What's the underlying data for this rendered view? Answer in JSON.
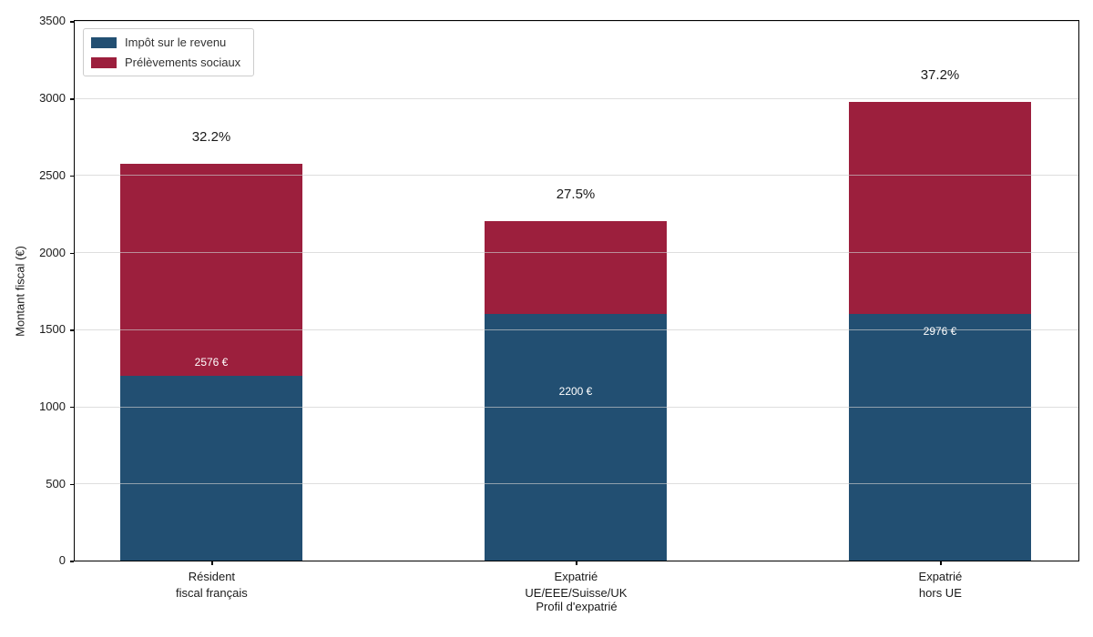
{
  "chart_data": {
    "type": "bar",
    "stacked": true,
    "xlabel": "Profil d'expatrié",
    "ylabel": "Montant fiscal (€)",
    "categories": [
      "Résident\nfiscal français",
      "Expatrié\nUE/EEE/Suisse/UK",
      "Expatrié\nhors UE"
    ],
    "series": [
      {
        "name": "Impôt sur le revenu",
        "color": "#224F72",
        "values": [
          1200,
          1600,
          1600
        ]
      },
      {
        "name": "Prélèvements sociaux",
        "color": "#9C1F3D",
        "values": [
          1376,
          600,
          1376
        ]
      }
    ],
    "totals": [
      2576,
      2200,
      2976
    ],
    "bar_total_labels": [
      "2576 €",
      "2200 €",
      "2976 €"
    ],
    "bar_percent_labels": [
      "32.2%",
      "27.5%",
      "37.2%"
    ],
    "ylim": [
      0,
      3500
    ],
    "yticks": [
      0,
      500,
      1000,
      1500,
      2000,
      2500,
      3000,
      3500
    ],
    "grid": true,
    "legend_position": "upper left",
    "colors": {
      "text": "#1a1a1a",
      "grid": "#cdcdcd",
      "bar_value_label": "#ffffff",
      "spine": "#000000",
      "background": "#ffffff"
    }
  }
}
